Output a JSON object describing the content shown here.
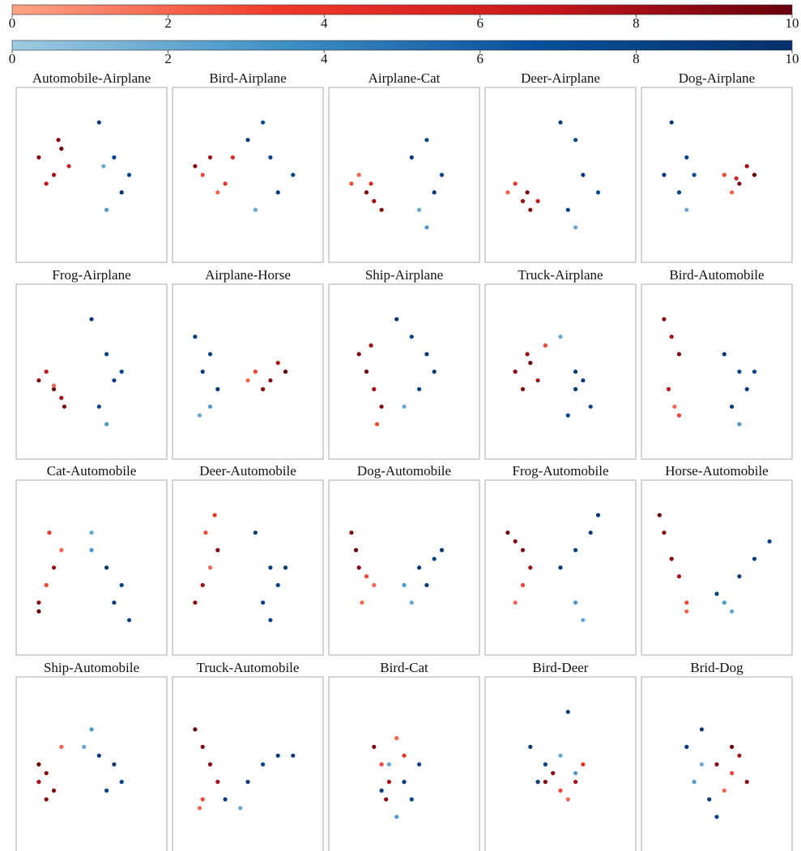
{
  "chart_data": {
    "type": "scatter-grid",
    "xlim": [
      0,
      10
    ],
    "ylim": [
      0,
      10
    ],
    "colorbars": [
      {
        "name": "Reds",
        "colors": [
          "#fca486",
          "#ef3b2c",
          "#cb181d",
          "#67000d"
        ],
        "lim": [
          0,
          10
        ],
        "ticks": [
          0,
          2,
          4,
          6,
          8,
          10
        ]
      },
      {
        "name": "Blues",
        "colors": [
          "#9ecae1",
          "#4292c6",
          "#08519c",
          "#08306b"
        ],
        "lim": [
          0,
          10
        ],
        "ticks": [
          0,
          2,
          4,
          6,
          8,
          10
        ]
      }
    ],
    "panels": [
      {
        "title": "Automobile-Airplane",
        "red": {
          "x": [
            1.5,
            2.5,
            3,
            2,
            3.5,
            2.8
          ],
          "y": [
            6,
            5,
            6.5,
            4.5,
            5.5,
            7
          ],
          "c": [
            9,
            8,
            10,
            7,
            6,
            9
          ]
        },
        "blue": {
          "x": [
            5.5,
            6.5,
            7,
            6,
            5.8,
            7.5
          ],
          "y": [
            8,
            6,
            4,
            3,
            5.5,
            5
          ],
          "c": [
            9,
            8,
            9,
            3,
            2,
            8
          ]
        }
      },
      {
        "title": "Bird-Airplane",
        "red": {
          "x": [
            2,
            3,
            2.5,
            3.5,
            1.5,
            4
          ],
          "y": [
            5,
            4,
            6,
            4.5,
            5.5,
            6
          ],
          "c": [
            3,
            2,
            8,
            4,
            9,
            5
          ]
        },
        "blue": {
          "x": [
            5,
            6.5,
            7,
            6,
            8,
            5.5
          ],
          "y": [
            7,
            6,
            4,
            8,
            5,
            3
          ],
          "c": [
            9,
            8,
            9,
            7,
            8,
            2
          ]
        }
      },
      {
        "title": "Airplane-Cat",
        "red": {
          "x": [
            1.5,
            2.5,
            3,
            2,
            3.5,
            2.8
          ],
          "y": [
            4.5,
            4,
            3.5,
            5,
            3,
            4.5
          ],
          "c": [
            3,
            9,
            8,
            2,
            9,
            5
          ]
        },
        "blue": {
          "x": [
            5.5,
            6.5,
            7,
            6,
            7.5,
            6.5
          ],
          "y": [
            6,
            7,
            4,
            3,
            5,
            2
          ],
          "c": [
            9,
            8,
            9,
            2,
            8,
            3
          ]
        }
      },
      {
        "title": "Deer-Airplane",
        "red": {
          "x": [
            1.5,
            2.5,
            3,
            2,
            3.5,
            2.8
          ],
          "y": [
            4,
            3.5,
            3,
            4.5,
            3.5,
            4
          ],
          "c": [
            2,
            8,
            9,
            4,
            7,
            9
          ]
        },
        "blue": {
          "x": [
            5,
            6,
            6.5,
            5.5,
            7.5,
            6
          ],
          "y": [
            8,
            7,
            5,
            3,
            4,
            2
          ],
          "c": [
            9,
            8,
            9,
            8,
            7,
            2
          ]
        }
      },
      {
        "title": "Dog-Airplane",
        "red": {
          "x": [
            5.5,
            6.5,
            7,
            6,
            7.5,
            6.3
          ],
          "y": [
            5,
            4.5,
            5.5,
            4,
            5,
            4.8
          ],
          "c": [
            3,
            9,
            8,
            2,
            10,
            6
          ]
        },
        "blue": {
          "x": [
            2,
            3,
            2.5,
            3.5,
            1.5,
            3
          ],
          "y": [
            8,
            6,
            4,
            5,
            5,
            3
          ],
          "c": [
            9,
            8,
            8,
            7,
            9,
            2
          ]
        }
      },
      {
        "title": "Frog-Airplane",
        "red": {
          "x": [
            1.5,
            2.5,
            3,
            2,
            3.2,
            2.5
          ],
          "y": [
            4.5,
            4,
            3.5,
            5,
            3,
            4.2
          ],
          "c": [
            9,
            10,
            8,
            7,
            9,
            2
          ]
        },
        "blue": {
          "x": [
            5,
            6,
            6.5,
            5.5,
            7,
            6
          ],
          "y": [
            8,
            6,
            4.5,
            3,
            5,
            2
          ],
          "c": [
            9,
            8,
            9,
            8,
            8,
            3
          ]
        }
      },
      {
        "title": "Airplane-Horse",
        "red": {
          "x": [
            5.5,
            6.5,
            7,
            6,
            7.5,
            5
          ],
          "y": [
            5,
            4.5,
            5.5,
            4,
            5,
            4.5
          ],
          "c": [
            3,
            9,
            8,
            9,
            10,
            2
          ]
        },
        "blue": {
          "x": [
            1.5,
            2.5,
            3,
            2,
            2.5,
            1.8
          ],
          "y": [
            7,
            6,
            4,
            5,
            3,
            2.5
          ],
          "c": [
            9,
            8,
            9,
            9,
            3,
            2
          ]
        }
      },
      {
        "title": "Ship-Airplane",
        "red": {
          "x": [
            2,
            2.5,
            3,
            3.5,
            2.8,
            3.2
          ],
          "y": [
            6,
            5,
            4,
            3,
            6.5,
            2
          ],
          "c": [
            9,
            10,
            8,
            9,
            8,
            3
          ]
        },
        "blue": {
          "x": [
            4.5,
            5.5,
            6.5,
            6,
            7,
            5
          ],
          "y": [
            8,
            7,
            6,
            4,
            5,
            3
          ],
          "c": [
            9,
            8,
            9,
            8,
            9,
            2
          ]
        }
      },
      {
        "title": "Truck-Airplane",
        "red": {
          "x": [
            2,
            2.5,
            3,
            3.5,
            2.8,
            4
          ],
          "y": [
            5,
            4,
            5.5,
            4.5,
            6,
            6.5
          ],
          "c": [
            9,
            9,
            10,
            8,
            8,
            3
          ]
        },
        "blue": {
          "x": [
            5,
            6,
            6.5,
            7,
            5.5,
            6
          ],
          "y": [
            7,
            5,
            4.5,
            3,
            2.5,
            4
          ],
          "c": [
            2,
            9,
            9,
            8,
            8,
            9
          ]
        }
      },
      {
        "title": "Bird-Automobile",
        "red": {
          "x": [
            1.5,
            2,
            2.5,
            1.8,
            2.2,
            2.5
          ],
          "y": [
            8,
            7,
            6,
            4,
            3,
            2.5
          ],
          "c": [
            9,
            8,
            9,
            7,
            2,
            3
          ]
        },
        "blue": {
          "x": [
            5.5,
            6.5,
            7,
            6,
            7.5,
            6.5
          ],
          "y": [
            6,
            5,
            4,
            3,
            5,
            2
          ],
          "c": [
            9,
            8,
            9,
            9,
            8,
            3
          ]
        }
      },
      {
        "title": "Cat-Automobile",
        "red": {
          "x": [
            1.5,
            2,
            2.5,
            3,
            2.2,
            1.5
          ],
          "y": [
            3,
            4,
            5,
            6,
            7,
            2.5
          ],
          "c": [
            9,
            3,
            8,
            2,
            4,
            10
          ]
        },
        "blue": {
          "x": [
            5,
            6,
            7,
            6.5,
            7.5,
            5
          ],
          "y": [
            7,
            5,
            4,
            3,
            2,
            6
          ],
          "c": [
            2,
            9,
            8,
            9,
            8,
            3
          ]
        }
      },
      {
        "title": "Deer-Automobile",
        "red": {
          "x": [
            1.5,
            2,
            2.5,
            3,
            2.2,
            2.8
          ],
          "y": [
            3,
            4,
            5,
            6,
            7,
            8
          ],
          "c": [
            9,
            8,
            2,
            9,
            3,
            4
          ]
        },
        "blue": {
          "x": [
            5.5,
            6.5,
            7,
            6,
            7.5,
            6.5
          ],
          "y": [
            7,
            5,
            4,
            3,
            5,
            2
          ],
          "c": [
            9,
            9,
            8,
            8,
            9,
            8
          ]
        }
      },
      {
        "title": "Dog-Automobile",
        "red": {
          "x": [
            1.5,
            1.8,
            2,
            2.5,
            3,
            2.2
          ],
          "y": [
            7,
            6,
            5,
            4.5,
            4,
            3
          ],
          "c": [
            9,
            10,
            9,
            3,
            2,
            2
          ]
        },
        "blue": {
          "x": [
            5,
            6,
            7,
            6.5,
            5.5,
            7.5
          ],
          "y": [
            4,
            5,
            5.5,
            4,
            3,
            6
          ],
          "c": [
            3,
            9,
            8,
            9,
            2,
            9
          ]
        }
      },
      {
        "title": "Frog-Automobile",
        "red": {
          "x": [
            1.5,
            2,
            2.5,
            3,
            2.5,
            2
          ],
          "y": [
            7,
            6.5,
            6,
            5,
            4,
            3
          ],
          "c": [
            10,
            9,
            9,
            8,
            3,
            2
          ]
        },
        "blue": {
          "x": [
            5,
            6,
            7,
            7.5,
            6,
            6.5
          ],
          "y": [
            5,
            6,
            7,
            8,
            3,
            2
          ],
          "c": [
            9,
            8,
            9,
            9,
            3,
            2
          ]
        }
      },
      {
        "title": "Horse-Automobile",
        "red": {
          "x": [
            1.2,
            1.5,
            2,
            2.5,
            3,
            3
          ],
          "y": [
            8,
            7,
            5.5,
            4.5,
            3,
            2.5
          ],
          "c": [
            10,
            9,
            9,
            8,
            3,
            2
          ]
        },
        "blue": {
          "x": [
            5.5,
            6.5,
            7.5,
            8.5,
            6,
            5
          ],
          "y": [
            3,
            4.5,
            5.5,
            6.5,
            2.5,
            3.5
          ],
          "c": [
            3,
            9,
            9,
            8,
            2,
            8
          ]
        }
      },
      {
        "title": "Ship-Automobile",
        "red": {
          "x": [
            1.5,
            2,
            2.5,
            2,
            1.5,
            3
          ],
          "y": [
            5,
            4.5,
            3.5,
            3,
            4,
            6
          ],
          "c": [
            10,
            9,
            9,
            9,
            8,
            2
          ]
        },
        "blue": {
          "x": [
            4.5,
            5.5,
            6.5,
            7,
            5,
            6
          ],
          "y": [
            6,
            5.5,
            5,
            4,
            7,
            3.5
          ],
          "c": [
            2,
            9,
            9,
            8,
            3,
            8
          ]
        }
      },
      {
        "title": "Truck-Automobile",
        "red": {
          "x": [
            1.5,
            2,
            2.5,
            3,
            2,
            1.8
          ],
          "y": [
            7,
            6,
            5,
            4,
            3,
            2.5
          ],
          "c": [
            10,
            9,
            9,
            8,
            3,
            2
          ]
        },
        "blue": {
          "x": [
            3.5,
            5,
            6,
            7,
            8,
            4.5
          ],
          "y": [
            3,
            4,
            5,
            5.5,
            5.5,
            2.5
          ],
          "c": [
            9,
            9,
            8,
            9,
            9,
            2
          ]
        }
      },
      {
        "title": "Bird-Cat",
        "red": {
          "x": [
            3,
            3.5,
            4,
            4.5,
            3.8,
            5
          ],
          "y": [
            6,
            5,
            4,
            6.5,
            3,
            5.5
          ],
          "c": [
            9,
            3,
            8,
            2,
            9,
            4
          ]
        },
        "blue": {
          "x": [
            4,
            5,
            4.5,
            5.5,
            3.5,
            6
          ],
          "y": [
            5,
            4,
            2,
            3,
            3.5,
            5
          ],
          "c": [
            2,
            9,
            3,
            8,
            9,
            8
          ]
        }
      },
      {
        "title": "Bird-Deer",
        "red": {
          "x": [
            4,
            5,
            6,
            5.5,
            4.5,
            6.5
          ],
          "y": [
            4,
            3.5,
            4,
            3,
            4.5,
            5
          ],
          "c": [
            9,
            3,
            8,
            2,
            9,
            4
          ]
        },
        "blue": {
          "x": [
            3,
            4,
            5,
            6,
            5.5,
            3.5
          ],
          "y": [
            6,
            5,
            5.5,
            4.5,
            8,
            4
          ],
          "c": [
            9,
            8,
            2,
            3,
            9,
            9
          ]
        }
      },
      {
        "title": "Brid-Dog",
        "red": {
          "x": [
            5,
            6,
            6.5,
            7,
            5.5,
            6
          ],
          "y": [
            5,
            4.5,
            5.5,
            4,
            3.5,
            6
          ],
          "c": [
            9,
            3,
            8,
            9,
            2,
            10
          ]
        },
        "blue": {
          "x": [
            3,
            4,
            4.5,
            3.5,
            5,
            4
          ],
          "y": [
            6,
            5,
            3,
            4,
            2,
            7
          ],
          "c": [
            9,
            2,
            9,
            3,
            8,
            9
          ]
        }
      }
    ]
  }
}
